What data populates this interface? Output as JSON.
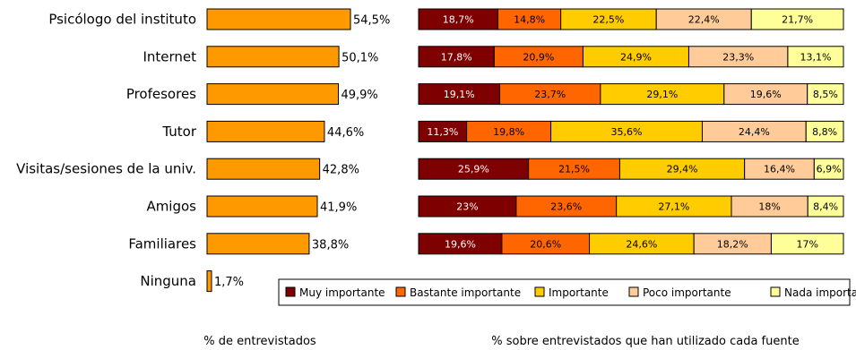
{
  "chart_data": [
    {
      "type": "bar",
      "orientation": "horizontal",
      "categories": [
        "Psicólogo del instituto",
        "Internet",
        "Profesores",
        "Tutor",
        "Visitas/sesiones de la univ.",
        "Amigos",
        "Familiares",
        "Ninguna"
      ],
      "values": [
        54.5,
        50.1,
        49.9,
        44.6,
        42.8,
        41.9,
        38.8,
        1.7
      ],
      "value_labels": [
        "54,5%",
        "50,1%",
        "49,9%",
        "44,6%",
        "42,8%",
        "41,9%",
        "38,8%",
        "1,7%"
      ],
      "xlabel": "% de entrevistados",
      "xlim": [
        0,
        60
      ],
      "grid": false,
      "color": "#FF9900"
    },
    {
      "type": "bar",
      "orientation": "horizontal",
      "stacked": true,
      "percent_stacked": true,
      "categories": [
        "Psicólogo del instituto",
        "Internet",
        "Profesores",
        "Tutor",
        "Visitas/sesiones de la univ.",
        "Amigos",
        "Familiares"
      ],
      "series": [
        {
          "name": "Muy importante",
          "color": "#7F0000",
          "text_color": "#ffffff",
          "values": [
            18.7,
            17.8,
            19.1,
            11.3,
            25.9,
            23,
            19.6
          ],
          "labels": [
            "18,7%",
            "17,8%",
            "19,1%",
            "11,3%",
            "25,9%",
            "23%",
            "19,6%"
          ]
        },
        {
          "name": "Bastante importante",
          "color": "#FF6600",
          "text_color": "#000000",
          "values": [
            14.8,
            20.9,
            23.7,
            19.8,
            21.5,
            23.6,
            20.6
          ],
          "labels": [
            "14,8%",
            "20,9%",
            "23,7%",
            "19,8%",
            "21,5%",
            "23,6%",
            "20,6%"
          ]
        },
        {
          "name": "Importante",
          "color": "#FFCC00",
          "text_color": "#000000",
          "values": [
            22.5,
            24.9,
            29.1,
            35.6,
            29.4,
            27.1,
            24.6
          ],
          "labels": [
            "22,5%",
            "24,9%",
            "29,1%",
            "35,6%",
            "29,4%",
            "27,1%",
            "24,6%"
          ]
        },
        {
          "name": "Poco importante",
          "color": "#FFCC99",
          "text_color": "#000000",
          "values": [
            22.4,
            23.3,
            19.6,
            24.4,
            16.4,
            18,
            18.2
          ],
          "labels": [
            "22,4%",
            "23,3%",
            "19,6%",
            "24,4%",
            "16,4%",
            "18%",
            "18,2%"
          ]
        },
        {
          "name": "Nada importante",
          "color": "#FFFF99",
          "text_color": "#000000",
          "values": [
            21.7,
            13.1,
            8.5,
            8.8,
            6.9,
            8.4,
            17
          ],
          "labels": [
            "21,7%",
            "13,1%",
            "8,5%",
            "8,8%",
            "6,9%",
            "8,4%",
            "17%"
          ]
        }
      ],
      "xlabel": "% sobre entrevistados que han utilizado cada fuente",
      "legend_position": "bottom",
      "grid": false
    }
  ]
}
